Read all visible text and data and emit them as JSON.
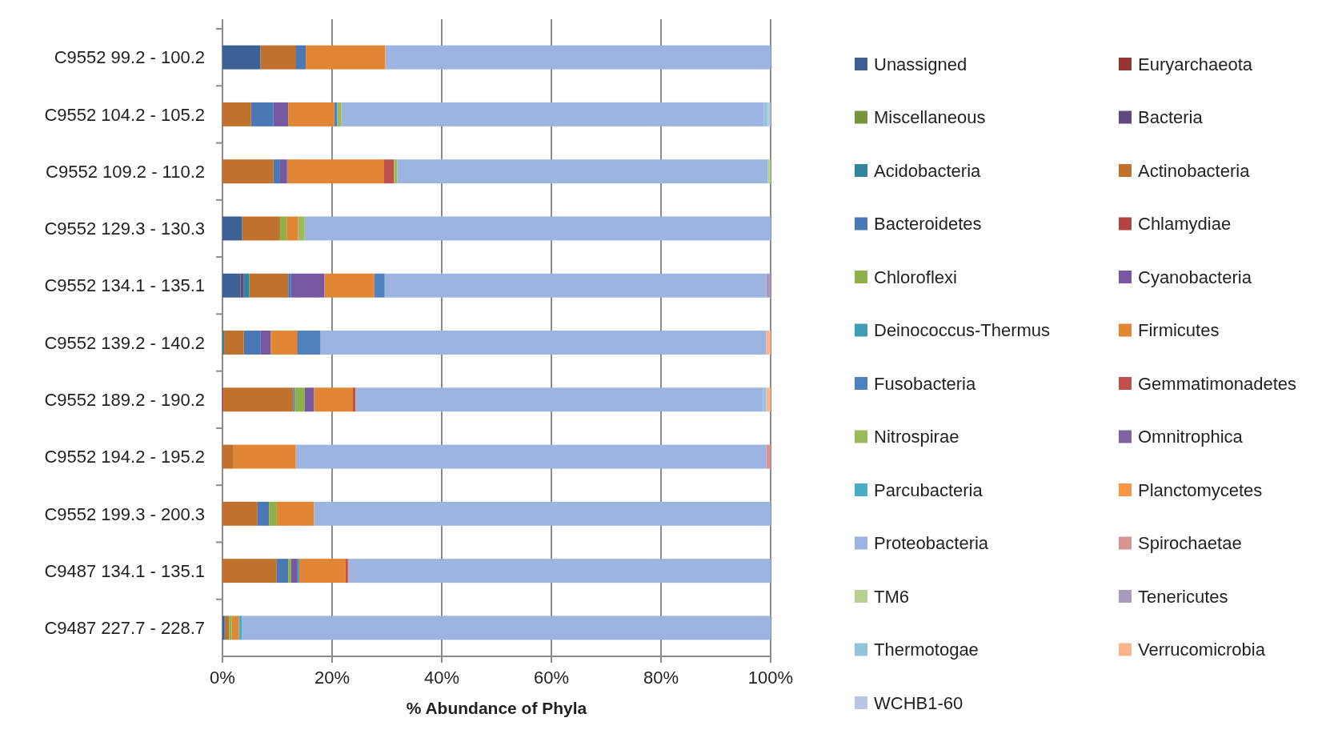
{
  "chart_data": {
    "type": "bar",
    "orientation": "horizontal",
    "stacked": true,
    "xlabel": "% Abundance of Phyla",
    "categories": [
      "C9552 99.2 - 100.2",
      "C9552 104.2 - 105.2",
      "C9552 109.2 - 110.2",
      "C9552 129.3 - 130.3",
      "C9552 134.1 - 135.1",
      "C9552 139.2 - 140.2",
      "C9552 189.2 - 190.2",
      "C9552 194.2 - 195.2",
      "C9552 199.3 - 200.3",
      "C9487 134.1 - 135.1",
      "C9487 227.7 - 228.7"
    ],
    "xlim": [
      0,
      100
    ],
    "xticks": [
      {
        "value": 0,
        "label": "0%"
      },
      {
        "value": 20,
        "label": "20%"
      },
      {
        "value": 40,
        "label": "40%"
      },
      {
        "value": 60,
        "label": "60%"
      },
      {
        "value": 80,
        "label": "80%"
      },
      {
        "value": 100,
        "label": "100%"
      }
    ],
    "grid": "x",
    "legend": "right",
    "series": [
      {
        "name": "Unassigned",
        "color": "#3d6194",
        "values": [
          6.9,
          0,
          0,
          3.6,
          3.3,
          0,
          0,
          0,
          0,
          0,
          0.4
        ]
      },
      {
        "name": "Euryarchaeota",
        "color": "#943634",
        "values": [
          0,
          0,
          0,
          0,
          0,
          0,
          0.2,
          0,
          0,
          0,
          0
        ]
      },
      {
        "name": "Miscellaneous",
        "color": "#77933c",
        "values": [
          0,
          0,
          0,
          0,
          0,
          0,
          0,
          0,
          0,
          0,
          0
        ]
      },
      {
        "name": "Bacteria",
        "color": "#5f4a7e",
        "values": [
          0,
          0,
          0,
          0,
          0.6,
          0,
          0,
          0,
          0,
          0,
          0
        ]
      },
      {
        "name": "Acidobacteria",
        "color": "#31859c",
        "values": [
          0,
          0,
          0,
          0,
          1.0,
          0.3,
          0,
          0,
          0,
          0,
          0
        ]
      },
      {
        "name": "Actinobacteria",
        "color": "#c0712e",
        "values": [
          6.4,
          5.2,
          9.3,
          6.9,
          7.1,
          3.6,
          12.7,
          1.9,
          6.4,
          9.9,
          0.8
        ]
      },
      {
        "name": "Bacteroidetes",
        "color": "#4a78b4",
        "values": [
          1.9,
          4.1,
          1.2,
          0,
          0.5,
          3.0,
          0.3,
          0,
          2.1,
          2.1,
          0
        ]
      },
      {
        "name": "Chlamydiae",
        "color": "#b14542",
        "values": [
          0,
          0,
          0,
          0,
          0,
          0,
          0,
          0,
          0,
          0,
          0
        ]
      },
      {
        "name": "Chloroflexi",
        "color": "#8eb04b",
        "values": [
          0,
          0,
          0,
          1.2,
          0,
          0,
          1.8,
          0,
          1.3,
          0.5,
          0.5
        ]
      },
      {
        "name": "Cyanobacteria",
        "color": "#7657a0",
        "values": [
          0,
          2.7,
          1.3,
          0,
          6.1,
          1.9,
          1.7,
          0,
          0,
          1.2,
          0
        ]
      },
      {
        "name": "Deinococcus-Thermus",
        "color": "#3e9fb6",
        "values": [
          0,
          0,
          0,
          0,
          0,
          0,
          0,
          0,
          0,
          0.3,
          0
        ]
      },
      {
        "name": "Firmicutes",
        "color": "#e08634",
        "values": [
          14.5,
          8.4,
          17.6,
          2.1,
          9.1,
          4.8,
          7.1,
          11.4,
          6.9,
          8.4,
          1.3
        ]
      },
      {
        "name": "Fusobacteria",
        "color": "#4f81bd",
        "values": [
          0,
          0.5,
          0,
          0,
          1.9,
          4.3,
          0,
          0,
          0,
          0,
          0
        ]
      },
      {
        "name": "Gemmatimonadetes",
        "color": "#c0504d",
        "values": [
          0,
          0,
          1.9,
          0,
          0,
          0,
          0.5,
          0,
          0,
          0.5,
          0
        ]
      },
      {
        "name": "Nitrospirae",
        "color": "#9bbb59",
        "values": [
          0,
          0.8,
          0.6,
          1.2,
          0,
          0,
          0,
          0,
          0,
          0,
          0
        ]
      },
      {
        "name": "Omnitrophica",
        "color": "#8064a2",
        "values": [
          0,
          0,
          0,
          0,
          0,
          0,
          0,
          0,
          0,
          0,
          0
        ]
      },
      {
        "name": "Parcubacteria",
        "color": "#4bacc6",
        "values": [
          0,
          0,
          0,
          0,
          0,
          0,
          0,
          0,
          0,
          0,
          0.6
        ]
      },
      {
        "name": "Planctomycetes",
        "color": "#f79646",
        "values": [
          0,
          0,
          0,
          0,
          0,
          0,
          0,
          0,
          0,
          0,
          0
        ]
      },
      {
        "name": "Proteobacteria",
        "color": "#9db4e0",
        "values": [
          70.3,
          77.1,
          67.6,
          85.0,
          69.6,
          81.3,
          74.3,
          85.9,
          83.3,
          77.1,
          96.4
        ]
      },
      {
        "name": "Spirochaetae",
        "color": "#d69594",
        "values": [
          0,
          0,
          0,
          0,
          0,
          0,
          0,
          0.8,
          0,
          0,
          0
        ]
      },
      {
        "name": "TM6",
        "color": "#b9cf92",
        "values": [
          0,
          0,
          0.5,
          0,
          0,
          0,
          0,
          0,
          0,
          0,
          0
        ]
      },
      {
        "name": "Tenericutes",
        "color": "#a99bbd",
        "values": [
          0,
          0,
          0,
          0,
          0.8,
          0,
          0,
          0,
          0,
          0,
          0
        ]
      },
      {
        "name": "Thermotogae",
        "color": "#92c5d7",
        "values": [
          0,
          0.7,
          0,
          0,
          0,
          0,
          0.6,
          0,
          0,
          0,
          0
        ]
      },
      {
        "name": "Verrucomicrobia",
        "color": "#fab58e",
        "values": [
          0,
          0,
          0,
          0,
          0,
          0.8,
          0.8,
          0,
          0,
          0,
          0
        ]
      },
      {
        "name": "WCHB1-60",
        "color": "#b9c6e3",
        "values": [
          0,
          0.5,
          0,
          0,
          0,
          0,
          0,
          0,
          0,
          0,
          0
        ]
      }
    ]
  }
}
